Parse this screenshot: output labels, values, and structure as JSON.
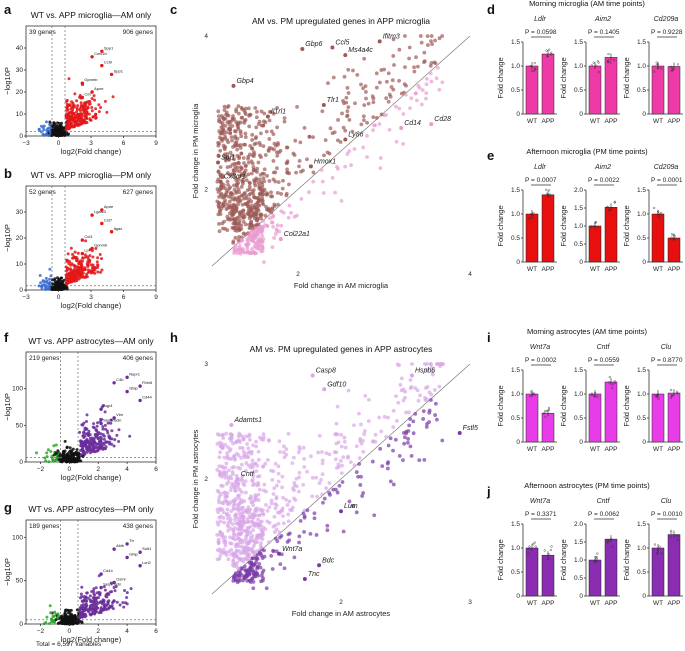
{
  "panel_labels": {
    "a": "a",
    "b": "b",
    "c": "c",
    "d": "d",
    "e": "e",
    "f": "f",
    "g": "g",
    "h": "h",
    "i": "i",
    "j": "j"
  },
  "total_note": "Total = 6,597 variables",
  "colors": {
    "micro_light": "#ef5fbf",
    "micro_dark": "#e8151e",
    "micro_bar_am": "#ee3aa6",
    "micro_bar_pm": "#e8100f",
    "astro_light": "#e83ce8",
    "astro_dark": "#8a2db3",
    "astro_pt_pink": "#d8a6e8",
    "astro_pt_purple": "#7a3aa8",
    "micro_pt_brown": "#9c5a55",
    "micro_pt_pink": "#e99bd0",
    "volcano_red": "#e4181a",
    "volcano_blue": "#3a6fd0",
    "volcano_purple": "#6a2e9a",
    "volcano_green": "#2aa82a",
    "black": "#111111"
  },
  "chart_data": [
    {
      "id": "a",
      "type": "scatter",
      "title": "WT vs. APP microglia—AM only",
      "left_count": "39 genes",
      "right_count": "906 genes",
      "xlabel": "log2(Fold change)",
      "ylabel": "−log10P",
      "xlim": [
        -3,
        9
      ],
      "ylim": [
        0,
        50
      ],
      "xticks": [
        -3,
        0,
        3,
        6,
        9
      ],
      "yticks": [
        0,
        10,
        20,
        30,
        40
      ],
      "labels": [
        "Cd7",
        "Cmc1b",
        "Ccl9",
        "Spp1",
        "Gpnmb",
        "Apoe",
        "Spp1"
      ]
    },
    {
      "id": "b",
      "type": "scatter",
      "title": "WT vs. APP microglia—PM only",
      "left_count": "52 genes",
      "right_count": "627 genes",
      "xlabel": "log2(Fold change)",
      "ylabel": "−log10P",
      "xlim": [
        -3,
        9
      ],
      "ylim": [
        0,
        40
      ],
      "xticks": [
        -3,
        0,
        3,
        6,
        9
      ],
      "yticks": [
        0,
        10,
        20,
        30
      ],
      "labels": [
        "Lpl",
        "Lgals3",
        "Cst7",
        "Itgax",
        "Ccl3",
        "Gpnmb",
        "Apoe"
      ]
    },
    {
      "id": "c",
      "type": "scatter",
      "title": "AM vs. PM upregulated genes in APP microglia",
      "xlabel": "Fold change in AM microglia",
      "ylabel": "Fold change in PM microglia",
      "xlim": [
        1,
        4
      ],
      "ylim": [
        1,
        4
      ],
      "xticks": [
        2,
        4
      ],
      "yticks": [
        2,
        4
      ],
      "genes": [
        {
          "name": "Gbp6",
          "x": 2.05,
          "y": 3.83
        },
        {
          "name": "Ccl5",
          "x": 2.4,
          "y": 3.85
        },
        {
          "name": "Ifitm3",
          "x": 2.95,
          "y": 3.93
        },
        {
          "name": "Ms4a4c",
          "x": 2.55,
          "y": 3.75
        },
        {
          "name": "Gbp4",
          "x": 1.25,
          "y": 3.35
        },
        {
          "name": "Il1rl1",
          "x": 1.65,
          "y": 2.95
        },
        {
          "name": "Tlr1",
          "x": 2.3,
          "y": 3.1
        },
        {
          "name": "Cd14",
          "x": 3.2,
          "y": 2.8
        },
        {
          "name": "Cd28",
          "x": 3.55,
          "y": 2.85
        },
        {
          "name": "Ly86",
          "x": 2.55,
          "y": 2.65
        },
        {
          "name": "Hmox1",
          "x": 2.15,
          "y": 2.3
        },
        {
          "name": "Spi1",
          "x": 1.07,
          "y": 2.35
        },
        {
          "name": "Cx3cr1",
          "x": 1.1,
          "y": 2.1
        },
        {
          "name": "Col22a1",
          "x": 1.8,
          "y": 1.35
        }
      ]
    },
    {
      "id": "d",
      "type": "bar",
      "title": "Morning microglia (AM time points)",
      "categories": [
        "WT",
        "APP"
      ],
      "ylabel": "Fold change",
      "subplots": [
        {
          "gene": "Ldlr",
          "p": "P = 0.0598",
          "values": [
            1.0,
            1.25
          ],
          "ylim": [
            0,
            1.5
          ],
          "yticks": [
            "0",
            "0.5",
            "1.0",
            "1.5"
          ]
        },
        {
          "gene": "Aim2",
          "p": "P = 0.1405",
          "values": [
            1.0,
            1.18
          ],
          "ylim": [
            0,
            1.5
          ],
          "yticks": [
            "0",
            "0.5",
            "1.0",
            "1.5"
          ]
        },
        {
          "gene": "Cd209a",
          "p": "P = 0.9228",
          "values": [
            1.0,
            0.99
          ],
          "ylim": [
            0,
            1.5
          ],
          "yticks": [
            "0",
            "0.5",
            "1.0",
            "1.5"
          ]
        }
      ]
    },
    {
      "id": "e",
      "type": "bar",
      "title": "Afternoon microglia (PM time points)",
      "categories": [
        "WT",
        "APP"
      ],
      "ylabel": "Fold change",
      "subplots": [
        {
          "gene": "Ldlr",
          "p": "P = 0.0007",
          "values": [
            1.0,
            1.4
          ],
          "ylim": [
            0,
            1.5
          ],
          "yticks": [
            "0",
            "0.5",
            "1.0",
            "1.5"
          ]
        },
        {
          "gene": "Aim2",
          "p": "P = 0.0022",
          "values": [
            1.0,
            1.52
          ],
          "ylim": [
            0,
            2.0
          ],
          "yticks": [
            "0",
            "0.5",
            "1.0",
            "1.5",
            "2.0"
          ]
        },
        {
          "gene": "Cd209a",
          "p": "P = 0.0001",
          "values": [
            1.0,
            0.5
          ],
          "ylim": [
            0,
            1.5
          ],
          "yticks": [
            "0",
            "0.5",
            "1.0",
            "1.5"
          ]
        }
      ]
    },
    {
      "id": "f",
      "type": "scatter",
      "title": "WT vs. APP astrocytes—AM only",
      "left_count": "219 genes",
      "right_count": "406 genes",
      "xlabel": "log2(Fold change)",
      "ylabel": "−log10P",
      "xlim": [
        -3,
        6
      ],
      "ylim": [
        0,
        150
      ],
      "xticks": [
        -2,
        0,
        2,
        4,
        6
      ],
      "yticks": [
        0,
        50,
        100
      ],
      "labels": [
        "Serpina3n",
        "C4b",
        "Gfap",
        "Cd44",
        "Aqp4",
        "Vim",
        "Nupr1",
        "Fbln5"
      ]
    },
    {
      "id": "g",
      "type": "scatter",
      "title": "WT vs. APP astrocytes—PM only",
      "left_count": "189 genes",
      "right_count": "438 genes",
      "xlabel": "log2(Fold change)",
      "ylabel": "−log10P",
      "xlim": [
        -3,
        6
      ],
      "ylim": [
        0,
        120
      ],
      "xticks": [
        -2,
        0,
        2,
        4,
        6
      ],
      "yticks": [
        0,
        50,
        100
      ],
      "labels": [
        "Serpina3n",
        "Aldh",
        "Gfap",
        "Lcn2",
        "Cd44",
        "Osmr",
        "Ttr",
        "Sult1"
      ]
    },
    {
      "id": "h",
      "type": "scatter",
      "title": "AM vs. PM upregulated genes in APP astrocytes",
      "xlabel": "Fold change in AM astrocytes",
      "ylabel": "Fold change in PM astrocytes",
      "xlim": [
        1,
        3
      ],
      "ylim": [
        1,
        3
      ],
      "xticks": [
        2,
        3
      ],
      "yticks": [
        2,
        3
      ],
      "genes": [
        {
          "name": "Casp8",
          "x": 1.78,
          "y": 2.9
        },
        {
          "name": "Gdf10",
          "x": 1.87,
          "y": 2.78
        },
        {
          "name": "Hspb6",
          "x": 2.55,
          "y": 2.9
        },
        {
          "name": "Fstl5",
          "x": 2.92,
          "y": 2.4
        },
        {
          "name": "Adamts1",
          "x": 1.15,
          "y": 2.47
        },
        {
          "name": "Cntf",
          "x": 1.2,
          "y": 2.0
        },
        {
          "name": "Lum",
          "x": 2.0,
          "y": 1.72
        },
        {
          "name": "Wnt7a",
          "x": 1.52,
          "y": 1.35
        },
        {
          "name": "Bdc",
          "x": 1.83,
          "y": 1.25
        },
        {
          "name": "Tnc",
          "x": 1.72,
          "y": 1.13
        }
      ]
    },
    {
      "id": "i",
      "type": "bar",
      "title": "Morning astrocytes (AM time points)",
      "categories": [
        "WT",
        "APP"
      ],
      "ylabel": "Fold change",
      "subplots": [
        {
          "gene": "Wnt7a",
          "p": "P = 0.0002",
          "values": [
            1.0,
            0.6
          ],
          "ylim": [
            0,
            1.5
          ],
          "yticks": [
            "0",
            "0.5",
            "1.0",
            "1.5"
          ]
        },
        {
          "gene": "Cntf",
          "p": "P = 0.0559",
          "values": [
            1.0,
            1.25
          ],
          "ylim": [
            0,
            1.5
          ],
          "yticks": [
            "0",
            "0.5",
            "1.0",
            "1.5"
          ]
        },
        {
          "gene": "Clu",
          "p": "P = 0.8770",
          "values": [
            1.0,
            1.02
          ],
          "ylim": [
            0,
            1.5
          ],
          "yticks": [
            "0",
            "0.5",
            "1.0",
            "1.5"
          ]
        }
      ]
    },
    {
      "id": "j",
      "type": "bar",
      "title": "Afternoon astrocytes (PM time points)",
      "categories": [
        "WT",
        "APP"
      ],
      "ylabel": "Fold change",
      "subplots": [
        {
          "gene": "Wnt7a",
          "p": "P = 0.3371",
          "values": [
            1.0,
            0.85
          ],
          "ylim": [
            0,
            1.5
          ],
          "yticks": [
            "0",
            "0.5",
            "1.0",
            "1.5"
          ]
        },
        {
          "gene": "Cntf",
          "p": "P = 0.0062",
          "values": [
            1.0,
            1.58
          ],
          "ylim": [
            0,
            2.0
          ],
          "yticks": [
            "0",
            "0.5",
            "1.0",
            "1.5",
            "2.0"
          ]
        },
        {
          "gene": "Clu",
          "p": "P = 0.0010",
          "values": [
            1.0,
            1.28
          ],
          "ylim": [
            0,
            1.5
          ],
          "yticks": [
            "0",
            "0.5",
            "1.0",
            "1.5"
          ]
        }
      ]
    }
  ]
}
